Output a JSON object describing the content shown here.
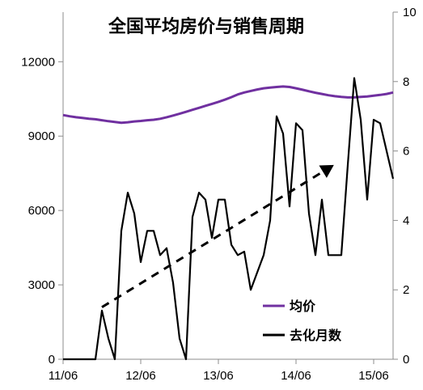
{
  "chart_data": {
    "type": "line",
    "title": "全国平均房价与销售周期",
    "x_tick_labels": [
      "11/06",
      "12/06",
      "13/06",
      "14/06",
      "15/06"
    ],
    "x_start": "2011-06",
    "x_end": "2015-09",
    "y_left": {
      "ticks": [
        "0",
        "3000",
        "6000",
        "9000",
        "12000"
      ],
      "range": [
        0,
        14000
      ]
    },
    "y_right": {
      "ticks": [
        "0",
        "2",
        "4",
        "6",
        "8",
        "10"
      ],
      "range": [
        0,
        10
      ]
    },
    "series": [
      {
        "name": "均价",
        "axis": "left",
        "color": "#7030A0",
        "x": [
          "2011-06",
          "2011-07",
          "2011-08",
          "2011-09",
          "2011-10",
          "2011-11",
          "2011-12",
          "2012-01",
          "2012-02",
          "2012-03",
          "2012-04",
          "2012-05",
          "2012-06",
          "2012-07",
          "2012-08",
          "2012-09",
          "2012-10",
          "2012-11",
          "2012-12",
          "2013-01",
          "2013-02",
          "2013-03",
          "2013-04",
          "2013-05",
          "2013-06",
          "2013-07",
          "2013-08",
          "2013-09",
          "2013-10",
          "2013-11",
          "2013-12",
          "2014-01",
          "2014-02",
          "2014-03",
          "2014-04",
          "2014-05",
          "2014-06",
          "2014-07",
          "2014-08",
          "2014-09",
          "2014-10",
          "2014-11",
          "2014-12",
          "2015-01",
          "2015-02",
          "2015-03",
          "2015-04",
          "2015-05",
          "2015-06",
          "2015-07",
          "2015-08",
          "2015-09"
        ],
        "values": [
          9850,
          9800,
          9760,
          9730,
          9700,
          9680,
          9640,
          9600,
          9570,
          9540,
          9560,
          9590,
          9610,
          9640,
          9660,
          9700,
          9760,
          9830,
          9900,
          9980,
          10060,
          10140,
          10220,
          10300,
          10380,
          10470,
          10570,
          10680,
          10760,
          10820,
          10880,
          10930,
          10960,
          10980,
          11000,
          10980,
          10930,
          10870,
          10810,
          10750,
          10700,
          10650,
          10610,
          10580,
          10560,
          10560,
          10580,
          10600,
          10630,
          10660,
          10700,
          10760
        ]
      },
      {
        "name": "去化月数",
        "axis": "right",
        "color": "#000000",
        "x": [
          "2011-06",
          "2011-07",
          "2011-08",
          "2011-09",
          "2011-10",
          "2011-11",
          "2011-12",
          "2012-01",
          "2012-02",
          "2012-03",
          "2012-04",
          "2012-05",
          "2012-06",
          "2012-07",
          "2012-08",
          "2012-09",
          "2012-10",
          "2012-11",
          "2012-12",
          "2013-01",
          "2013-02",
          "2013-03",
          "2013-04",
          "2013-05",
          "2013-06",
          "2013-07",
          "2013-08",
          "2013-09",
          "2013-10",
          "2013-11",
          "2013-12",
          "2014-01",
          "2014-02",
          "2014-03",
          "2014-04",
          "2014-05",
          "2014-06",
          "2014-07",
          "2014-08",
          "2014-09",
          "2014-10",
          "2014-11",
          "2014-12",
          "2015-01",
          "2015-02",
          "2015-03",
          "2015-04",
          "2015-05",
          "2015-06",
          "2015-07",
          "2015-08",
          "2015-09"
        ],
        "values": [
          0,
          0,
          0,
          0,
          0,
          0,
          1.4,
          0.6,
          0,
          3.7,
          4.8,
          4.2,
          2.8,
          3.7,
          3.7,
          3.0,
          3.2,
          2.2,
          0.6,
          0,
          4.1,
          4.8,
          4.6,
          3.5,
          4.6,
          4.6,
          3.3,
          3.0,
          3.1,
          2.0,
          2.5,
          3.0,
          4.0,
          7.0,
          6.5,
          4.4,
          6.8,
          6.6,
          4.2,
          3.0,
          4.6,
          3.0,
          3.0,
          3.0,
          5.6,
          8.1,
          6.9,
          4.6,
          6.9,
          6.8,
          6.0,
          5.2
        ]
      }
    ],
    "trend_arrow": {
      "axis": "right",
      "from": [
        "2011-12",
        1.5
      ],
      "to": [
        "2014-11",
        5.5
      ],
      "style": "dashed"
    },
    "legend": {
      "position": "bottom-right"
    },
    "grid": false
  }
}
